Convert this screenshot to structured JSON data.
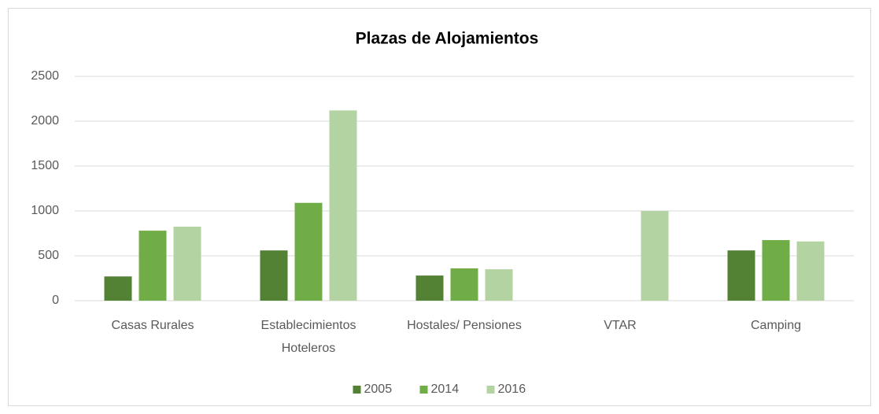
{
  "chart_data": {
    "type": "bar",
    "title": "Plazas de Alojamientos",
    "categories": [
      "Casas Rurales",
      "Establecimientos Hoteleros",
      "Hostales/ Pensiones",
      "VTAR",
      "Camping"
    ],
    "series": [
      {
        "name": "2005",
        "color": "#548235",
        "values": [
          270,
          560,
          280,
          null,
          560
        ]
      },
      {
        "name": "2014",
        "color": "#70ad47",
        "values": [
          780,
          1090,
          360,
          null,
          675
        ]
      },
      {
        "name": "2016",
        "color": "#b4d3a2",
        "values": [
          825,
          2120,
          350,
          1000,
          660
        ]
      }
    ],
    "ylim": [
      0,
      2500
    ],
    "yticks": [
      0,
      500,
      1000,
      1500,
      2000,
      2500
    ],
    "grid": true,
    "legend": "bottom"
  }
}
